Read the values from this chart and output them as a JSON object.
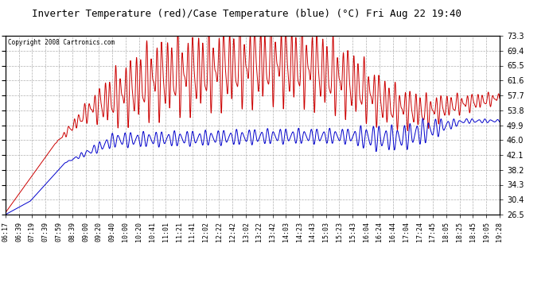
{
  "title": "Inverter Temperature (red)/Case Temperature (blue) (°C) Fri Aug 22 19:40",
  "copyright": "Copyright 2008 Cartronics.com",
  "yticks": [
    26.5,
    30.4,
    34.3,
    38.2,
    42.1,
    46.0,
    49.9,
    53.8,
    57.7,
    61.6,
    65.5,
    69.4,
    73.3
  ],
  "ymin": 26.5,
  "ymax": 73.3,
  "background_color": "#ffffff",
  "grid_color": "#b0b0b0",
  "red_color": "#cc0000",
  "blue_color": "#0000cc",
  "x_labels": [
    "06:17",
    "06:39",
    "07:19",
    "07:39",
    "07:59",
    "08:39",
    "09:00",
    "09:20",
    "09:40",
    "10:00",
    "10:20",
    "10:41",
    "11:01",
    "11:21",
    "11:41",
    "12:02",
    "12:22",
    "12:42",
    "13:02",
    "13:22",
    "13:42",
    "14:03",
    "14:23",
    "14:43",
    "15:03",
    "15:23",
    "15:43",
    "16:04",
    "16:24",
    "16:44",
    "17:04",
    "17:24",
    "17:45",
    "18:05",
    "18:25",
    "18:45",
    "19:05",
    "19:28"
  ],
  "figwidth": 6.9,
  "figheight": 3.75,
  "dpi": 100
}
